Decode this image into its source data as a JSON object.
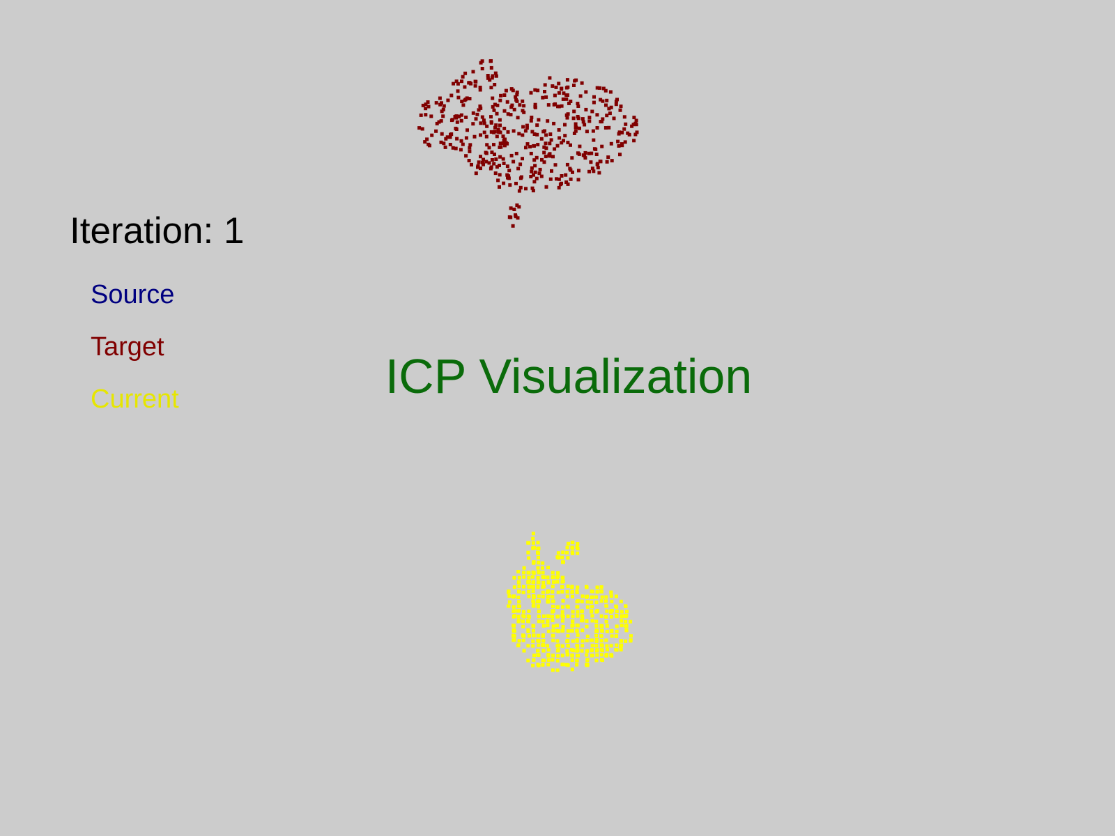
{
  "window": {
    "background": "#cccccc"
  },
  "hud": {
    "iteration_label": "Iteration: 1",
    "iteration_color": "#000000"
  },
  "legend": {
    "items": [
      {
        "label": "Source",
        "color": "#000080"
      },
      {
        "label": "Target",
        "color": "#800000"
      },
      {
        "label": "Current",
        "color": "#e6e600"
      }
    ]
  },
  "title": {
    "text": "ICP Visualization",
    "color": "#0a6b0a"
  },
  "point_clouds": {
    "target": {
      "color": "#800000",
      "shape": "bunny",
      "state": "rotated"
    },
    "current": {
      "color": "#ffff00",
      "shape": "bunny",
      "state": "upright"
    }
  }
}
